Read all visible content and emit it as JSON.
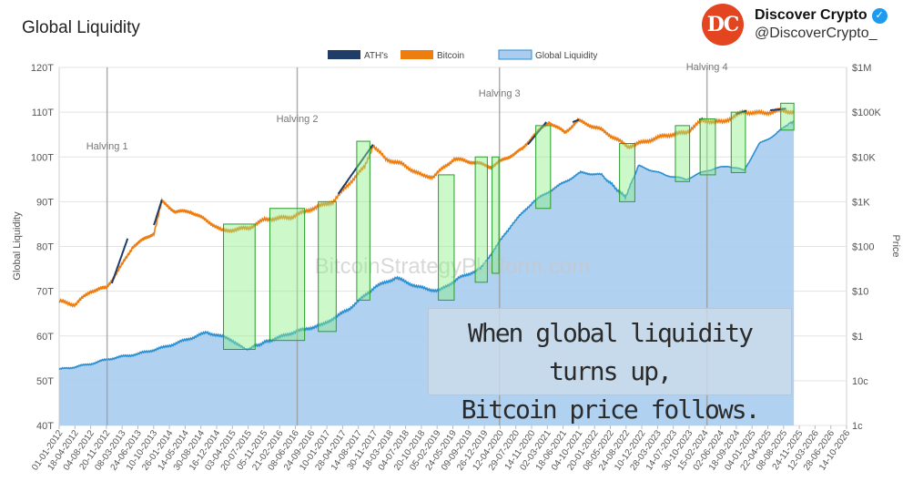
{
  "title": "Global Liquidity",
  "account": {
    "name": "Discover Crypto",
    "handle": "@DiscoverCrypto_",
    "logo_text": "DC"
  },
  "caption": {
    "line1": "When global liquidity turns up,",
    "line2": "Bitcoin price follows."
  },
  "watermark": "BitcoinStrategyPlatform.com",
  "colors": {
    "ath": "#1f3d66",
    "bitcoin": "#ee7d10",
    "liquidity_line": "#2b8fd0",
    "liquidity_fill": "#a9ccef",
    "highlight": "#8ff08a"
  },
  "chart_data": {
    "type": "line",
    "title": "Global Liquidity",
    "legend": [
      "ATH's",
      "Bitcoin",
      "Global Liquidity"
    ],
    "legend_position": "top-center",
    "ylabel_left": "Global Liquidity",
    "ylabel_right": "Price",
    "ylim_left": [
      40,
      120
    ],
    "yticks_left": [
      "40T",
      "50T",
      "60T",
      "70T",
      "80T",
      "90T",
      "100T",
      "110T",
      "120T"
    ],
    "yticks_left_values": [
      40,
      50,
      60,
      70,
      80,
      90,
      100,
      110,
      120
    ],
    "yticks_right": [
      "1c",
      "10c",
      "$1",
      "$10",
      "$100",
      "$1K",
      "$10K",
      "$100K",
      "$1M"
    ],
    "yticks_right_values": [
      0.01,
      0.1,
      1,
      10,
      100,
      1000,
      10000,
      100000,
      1000000
    ],
    "xlim": [
      2012.0,
      2026.95
    ],
    "xticks": [
      "01-01-2012",
      "18-04-2012",
      "04-08-2012",
      "20-11-2012",
      "08-03-2013",
      "24-06-2013",
      "10-10-2013",
      "26-01-2014",
      "14-05-2014",
      "30-08-2014",
      "16-12-2014",
      "03-04-2015",
      "20-07-2015",
      "05-11-2015",
      "21-02-2016",
      "08-06-2016",
      "24-09-2016",
      "10-01-2017",
      "28-04-2017",
      "14-08-2017",
      "30-11-2017",
      "18-03-2018",
      "04-07-2018",
      "20-10-2018",
      "05-02-2019",
      "24-05-2019",
      "09-09-2019",
      "26-12-2019",
      "12-04-2020",
      "29-07-2020",
      "14-11-2020",
      "02-03-2021",
      "18-06-2021",
      "04-10-2021",
      "20-01-2022",
      "08-05-2022",
      "24-08-2022",
      "10-12-2022",
      "28-03-2023",
      "14-07-2023",
      "30-10-2023",
      "15-02-2024",
      "02-06-2024",
      "18-09-2024",
      "04-01-2025",
      "22-04-2025",
      "08-08-2025",
      "24-11-2025",
      "12-03-2026",
      "28-06-2026",
      "14-10-2026"
    ],
    "halvings": [
      {
        "label": "Halving 1",
        "date": 2012.91
      },
      {
        "label": "Halving 2",
        "date": 2016.52
      },
      {
        "label": "Halving 3",
        "date": 2020.36
      },
      {
        "label": "Halving 4",
        "date": 2024.3
      }
    ],
    "series": [
      {
        "name": "Global Liquidity",
        "axis": "left",
        "unit": "T",
        "x": [
          2012.0,
          2012.5,
          2013.0,
          2013.5,
          2014.0,
          2014.5,
          2014.8,
          2015.2,
          2015.55,
          2016.0,
          2016.5,
          2017.0,
          2017.5,
          2018.0,
          2018.4,
          2018.8,
          2019.2,
          2019.6,
          2020.0,
          2020.3,
          2020.6,
          2021.0,
          2021.4,
          2021.9,
          2022.3,
          2022.75,
          2023.0,
          2023.5,
          2023.9,
          2024.3,
          2024.7,
          2025.0,
          2025.3,
          2025.6,
          2025.8,
          2025.95
        ],
        "values": [
          52.5,
          53.5,
          55,
          56,
          57.5,
          59.5,
          60.8,
          59.5,
          57,
          59,
          61,
          62.5,
          66,
          71,
          73,
          71,
          70,
          73,
          75,
          80,
          85,
          90,
          93,
          96.5,
          96,
          91,
          98,
          96,
          95,
          97,
          98,
          97,
          103,
          105,
          107,
          108
        ]
      },
      {
        "name": "Bitcoin",
        "axis": "right",
        "unit": "USD",
        "x": [
          2012.0,
          2012.3,
          2012.6,
          2012.9,
          2013.2,
          2013.4,
          2013.8,
          2013.95,
          2014.2,
          2014.5,
          2014.9,
          2015.1,
          2015.6,
          2015.9,
          2016.4,
          2016.8,
          2017.2,
          2017.5,
          2017.8,
          2017.96,
          2018.2,
          2018.5,
          2018.9,
          2019.1,
          2019.5,
          2019.9,
          2020.2,
          2020.5,
          2020.8,
          2021.0,
          2021.3,
          2021.6,
          2021.85,
          2022.3,
          2022.8,
          2023.0,
          2023.5,
          2023.9,
          2024.2,
          2024.6,
          2024.9,
          2025.0,
          2025.4,
          2025.7,
          2025.95
        ],
        "values": [
          6,
          5,
          10,
          12,
          40,
          100,
          200,
          1000,
          600,
          600,
          320,
          220,
          260,
          400,
          450,
          700,
          1000,
          2500,
          6000,
          18000,
          9000,
          7000,
          3800,
          3600,
          9000,
          7500,
          6000,
          9500,
          15000,
          30000,
          60000,
          35000,
          65000,
          40000,
          17000,
          20000,
          30000,
          35000,
          65000,
          60000,
          90000,
          100000,
          95000,
          110000,
          100000
        ]
      },
      {
        "name": "ATH's",
        "axis": "right",
        "unit": "USD",
        "segments": [
          {
            "x": [
              2013.0,
              2013.3
            ],
            "values": [
              15,
              150
            ]
          },
          {
            "x": [
              2013.8,
              2013.95
            ],
            "values": [
              300,
              1100
            ]
          },
          {
            "x": [
              2017.3,
              2017.96
            ],
            "values": [
              1500,
              19000
            ]
          },
          {
            "x": [
              2020.9,
              2021.25
            ],
            "values": [
              19000,
              60000
            ]
          },
          {
            "x": [
              2021.75,
              2021.87
            ],
            "values": [
              60000,
              68000
            ]
          },
          {
            "x": [
              2024.15,
              2024.22
            ],
            "values": [
              68000,
              72000
            ]
          },
          {
            "x": [
              2024.85,
              2025.05
            ],
            "values": [
              90000,
              108000
            ]
          },
          {
            "x": [
              2025.5,
              2025.8
            ],
            "values": [
              110000,
              120000
            ]
          }
        ]
      }
    ],
    "highlights": [
      {
        "x": [
          2015.12,
          2015.72
        ],
        "y_range": [
          57,
          85
        ]
      },
      {
        "x": [
          2016.0,
          2016.66
        ],
        "y_range": [
          59,
          88.5
        ]
      },
      {
        "x": [
          2016.92,
          2017.26
        ],
        "y_range": [
          61,
          90
        ]
      },
      {
        "x": [
          2017.65,
          2017.9
        ],
        "y_range": [
          68,
          103.5
        ]
      },
      {
        "x": [
          2019.2,
          2019.5
        ],
        "y_range": [
          68,
          96
        ]
      },
      {
        "x": [
          2019.9,
          2020.13
        ],
        "y_range": [
          72,
          100
        ]
      },
      {
        "x": [
          2020.22,
          2020.35
        ],
        "y_range": [
          74,
          100
        ]
      },
      {
        "x": [
          2021.05,
          2021.33
        ],
        "y_range": [
          88.5,
          107
        ]
      },
      {
        "x": [
          2022.64,
          2022.93
        ],
        "y_range": [
          90,
          103
        ]
      },
      {
        "x": [
          2023.7,
          2023.97
        ],
        "y_range": [
          94.5,
          107
        ]
      },
      {
        "x": [
          2024.17,
          2024.46
        ],
        "y_range": [
          96,
          108.5
        ]
      },
      {
        "x": [
          2024.76,
          2025.03
        ],
        "y_range": [
          96.5,
          110
        ]
      },
      {
        "x": [
          2025.7,
          2025.95
        ],
        "y_range": [
          106,
          112
        ]
      }
    ]
  }
}
